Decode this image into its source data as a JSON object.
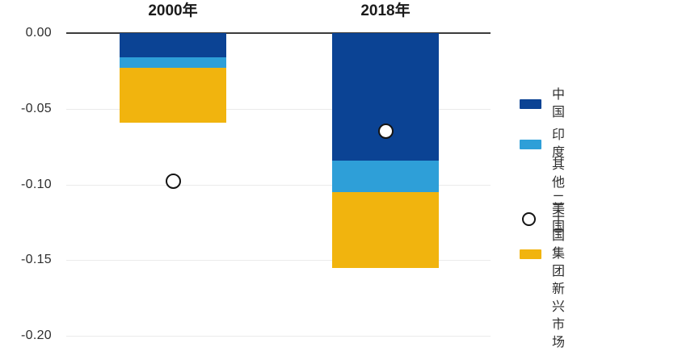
{
  "chart_data": {
    "type": "bar",
    "subtype": "stacked-bars-with-point-overlay",
    "categories": [
      "2000年",
      "2018年"
    ],
    "series": [
      {
        "name": "中国",
        "color": "#0b4394",
        "values": [
          -0.016,
          -0.084
        ]
      },
      {
        "name": "印度",
        "color": "#2e9fd8",
        "values": [
          -0.007,
          -0.021
        ]
      },
      {
        "name": "其他二十国集团新兴市场",
        "color": "#f1b40e",
        "values": [
          -0.036,
          -0.05
        ]
      }
    ],
    "point_series": {
      "name": "美国",
      "marker": "open-circle",
      "marker_fill": "#ffffff",
      "marker_stroke": "#141414",
      "values": [
        -0.098,
        -0.065
      ]
    },
    "yticks": [
      0.0,
      -0.05,
      -0.1,
      -0.15,
      -0.2
    ],
    "ytick_labels": [
      "0.00",
      "-0.05",
      "-0.10",
      "-0.15",
      "-0.20"
    ],
    "ylim": [
      -0.2,
      0.0
    ],
    "grid": true,
    "zero_line_color": "#3c3c3c",
    "gridline_color": "#ebebeb",
    "legend_position": "right",
    "title": "",
    "xlabel": "",
    "ylabel": ""
  },
  "legend": {
    "items": [
      {
        "label_lines": [
          "中国"
        ],
        "swatch": "rect",
        "color": "#0b4394"
      },
      {
        "label_lines": [
          "印度"
        ],
        "swatch": "rect",
        "color": "#2e9fd8"
      },
      {
        "label_lines": [
          "其他二十国集团",
          "新兴市场"
        ],
        "swatch": "rect",
        "color": "#f1b40e"
      },
      {
        "label_lines": [
          "美国"
        ],
        "swatch": "open-circle",
        "color": "#ffffff",
        "stroke": "#141414"
      }
    ]
  }
}
